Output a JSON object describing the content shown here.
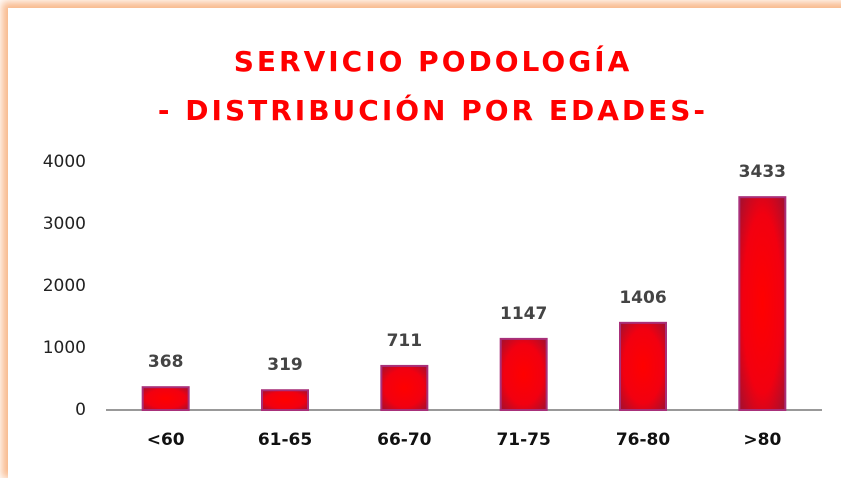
{
  "chart_data": {
    "type": "bar",
    "title": [
      "SERVICIO PODOLOGÍA",
      "- DISTRIBUCIÓN POR EDADES-"
    ],
    "categories": [
      "<60",
      "61-65",
      "66-70",
      "71-75",
      "76-80",
      ">80"
    ],
    "values": [
      368,
      319,
      711,
      1147,
      1406,
      3433
    ],
    "color": "#ff0000",
    "ylim": [
      0,
      4000
    ],
    "yticks": [
      0,
      1000,
      2000,
      3000,
      4000
    ],
    "grid": false
  }
}
